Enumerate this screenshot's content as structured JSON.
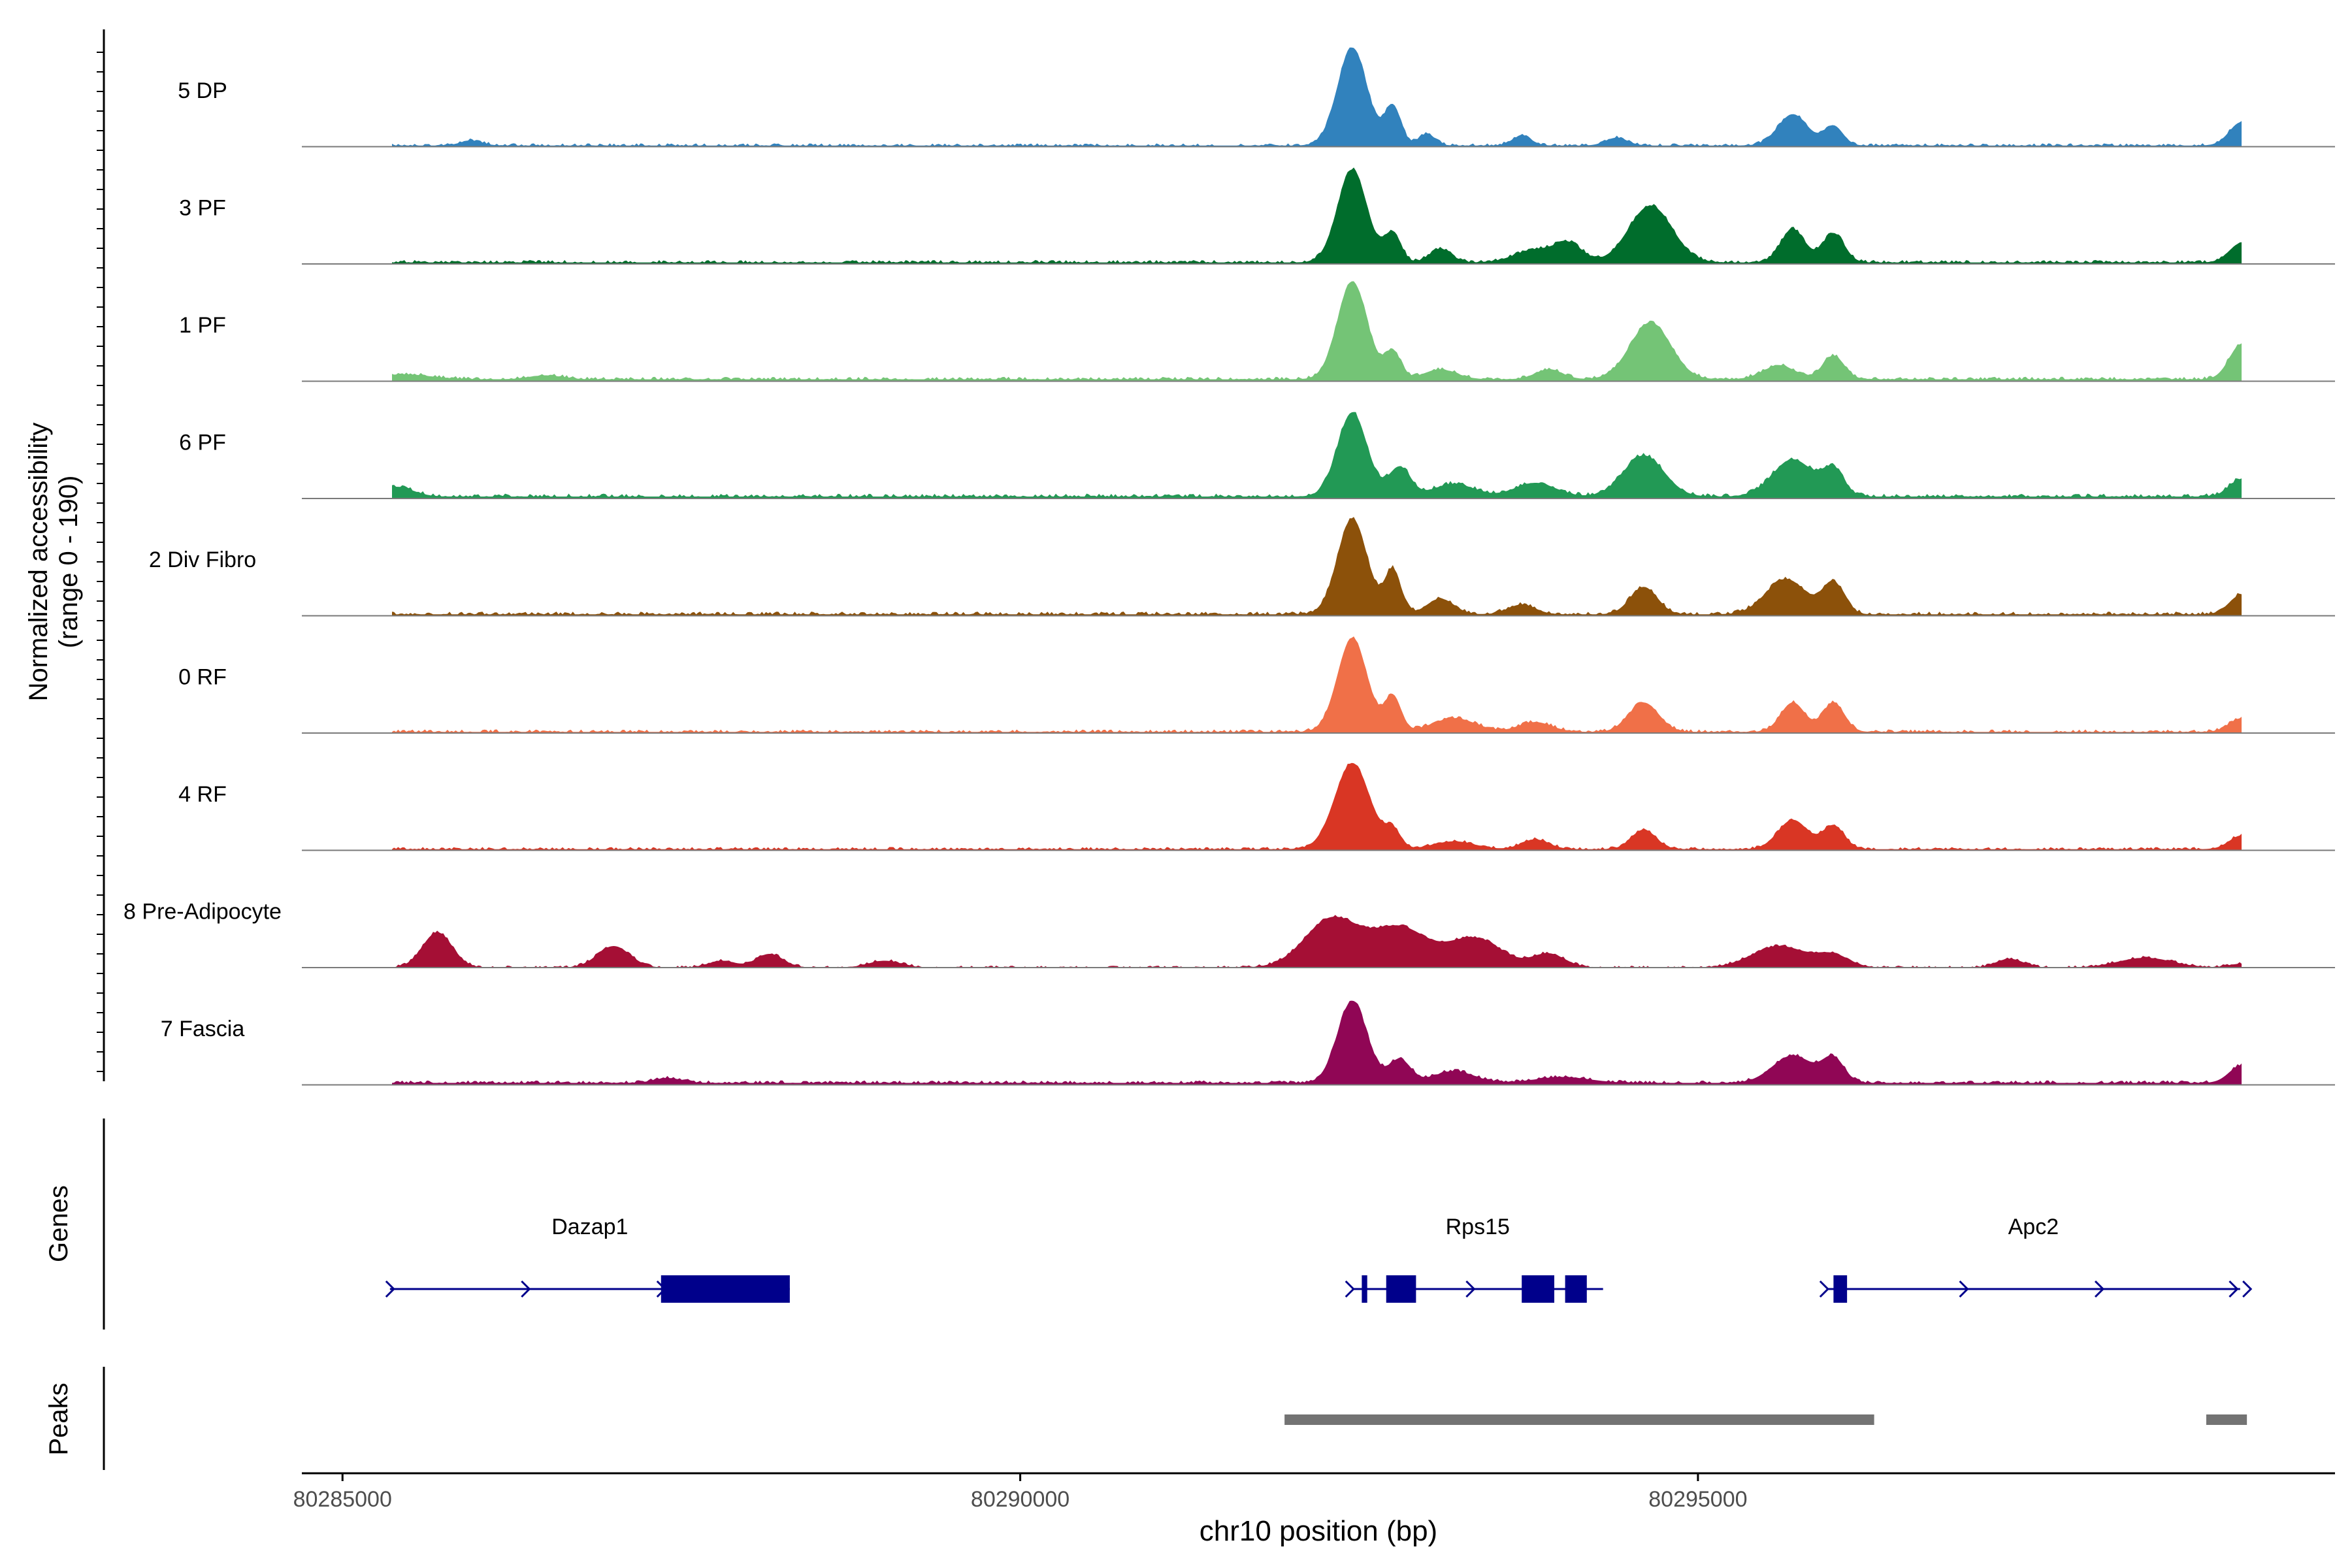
{
  "chart_data": {
    "type": "area",
    "subtype": "genome-coverage-track",
    "region": {
      "chromosome": "chr10",
      "start": 80284700,
      "end": 80299700
    },
    "xlabel": "chr10 position (bp)",
    "xticks": [
      {
        "value": 80285000,
        "label": "80285000"
      },
      {
        "value": 80290000,
        "label": "80290000"
      },
      {
        "value": 80295000,
        "label": "80295000"
      }
    ],
    "ylabel_line1": "Normalized accessibility",
    "ylabel_line2": "(range 0 - 190)",
    "y_range": [
      0,
      190
    ],
    "groups": [
      {
        "name": "5 DP",
        "color": "#3182BD",
        "baseline": 0.012,
        "noise": 0.022,
        "end_bump": 0.24,
        "peaks": [
          [
            80285950,
            0.05,
            80
          ],
          [
            80292450,
            1.0,
            110
          ],
          [
            80292750,
            0.4,
            60
          ],
          [
            80293000,
            0.12,
            60
          ],
          [
            80293700,
            0.1,
            70
          ],
          [
            80294400,
            0.08,
            80
          ],
          [
            80295700,
            0.32,
            110
          ],
          [
            80296000,
            0.2,
            70
          ]
        ]
      },
      {
        "name": "3 PF",
        "color": "#006D2C",
        "baseline": 0.015,
        "noise": 0.025,
        "end_bump": 0.2,
        "peaks": [
          [
            80292450,
            0.95,
            110
          ],
          [
            80292750,
            0.3,
            60
          ],
          [
            80293100,
            0.14,
            80
          ],
          [
            80293800,
            0.13,
            150
          ],
          [
            80294050,
            0.18,
            100
          ],
          [
            80294650,
            0.58,
            160
          ],
          [
            80295700,
            0.34,
            90
          ],
          [
            80296000,
            0.3,
            80
          ]
        ]
      },
      {
        "name": "1 PF",
        "color": "#74C476",
        "baseline": 0.02,
        "noise": 0.025,
        "end_bump": 0.36,
        "peaks": [
          [
            80285450,
            0.05,
            200
          ],
          [
            80286500,
            0.04,
            120
          ],
          [
            80292450,
            1.0,
            110
          ],
          [
            80292750,
            0.28,
            60
          ],
          [
            80293100,
            0.1,
            120
          ],
          [
            80293900,
            0.1,
            100
          ],
          [
            80294650,
            0.58,
            150
          ],
          [
            80295600,
            0.14,
            120
          ],
          [
            80296000,
            0.24,
            80
          ]
        ]
      },
      {
        "name": "6 PF",
        "color": "#229955",
        "baseline": 0.02,
        "noise": 0.03,
        "end_bump": 0.18,
        "peaks": [
          [
            80285400,
            0.1,
            120
          ],
          [
            80292450,
            0.86,
            110
          ],
          [
            80292800,
            0.3,
            80
          ],
          [
            80293200,
            0.13,
            150
          ],
          [
            80293800,
            0.14,
            150
          ],
          [
            80294600,
            0.42,
            150
          ],
          [
            80295700,
            0.38,
            150
          ],
          [
            80296000,
            0.26,
            80
          ]
        ]
      },
      {
        "name": "2 Div Fibro",
        "color": "#8C510A",
        "baseline": 0.015,
        "noise": 0.028,
        "end_bump": 0.2,
        "peaks": [
          [
            80292450,
            0.98,
            110
          ],
          [
            80292750,
            0.45,
            60
          ],
          [
            80293100,
            0.16,
            100
          ],
          [
            80293700,
            0.1,
            100
          ],
          [
            80294600,
            0.28,
            100
          ],
          [
            80295650,
            0.36,
            150
          ],
          [
            80296000,
            0.32,
            80
          ]
        ]
      },
      {
        "name": "0 RF",
        "color": "#F07048",
        "baseline": 0.012,
        "noise": 0.025,
        "end_bump": 0.14,
        "peaks": [
          [
            80292450,
            0.96,
            110
          ],
          [
            80292750,
            0.36,
            60
          ],
          [
            80293200,
            0.14,
            160
          ],
          [
            80293800,
            0.1,
            120
          ],
          [
            80294600,
            0.3,
            110
          ],
          [
            80295700,
            0.3,
            90
          ],
          [
            80296000,
            0.3,
            80
          ]
        ]
      },
      {
        "name": "4 RF",
        "color": "#D93624",
        "baseline": 0.012,
        "noise": 0.022,
        "end_bump": 0.14,
        "peaks": [
          [
            80292450,
            0.88,
            130
          ],
          [
            80292750,
            0.18,
            60
          ],
          [
            80293200,
            0.08,
            150
          ],
          [
            80293800,
            0.1,
            100
          ],
          [
            80294600,
            0.2,
            90
          ],
          [
            80295700,
            0.3,
            110
          ],
          [
            80296000,
            0.24,
            80
          ]
        ]
      },
      {
        "name": "8 Pre-Adipocyte",
        "color": "#A50F35",
        "baseline": 0.0,
        "noise": 0.02,
        "end_bump": 0.04,
        "peaks": [
          [
            80285700,
            0.36,
            110
          ],
          [
            80287000,
            0.22,
            120
          ],
          [
            80287800,
            0.07,
            100
          ],
          [
            80288150,
            0.14,
            100
          ],
          [
            80289000,
            0.07,
            120
          ],
          [
            80292300,
            0.5,
            200
          ],
          [
            80292800,
            0.4,
            200
          ],
          [
            80293350,
            0.3,
            200
          ],
          [
            80293900,
            0.14,
            120
          ],
          [
            80295600,
            0.22,
            200
          ],
          [
            80296000,
            0.12,
            120
          ],
          [
            80297300,
            0.09,
            100
          ],
          [
            80298300,
            0.1,
            200
          ]
        ]
      },
      {
        "name": "7 Fascia",
        "color": "#900655",
        "baseline": 0.02,
        "noise": 0.025,
        "end_bump": 0.18,
        "peaks": [
          [
            80287400,
            0.05,
            100
          ],
          [
            80292450,
            0.84,
            110
          ],
          [
            80292800,
            0.24,
            80
          ],
          [
            80293200,
            0.12,
            150
          ],
          [
            80294000,
            0.06,
            200
          ],
          [
            80295700,
            0.28,
            150
          ],
          [
            80296000,
            0.24,
            80
          ]
        ]
      }
    ],
    "genes_track_label": "Genes",
    "genes": [
      {
        "name": "Dazap1",
        "color": "#00008B",
        "strand": "+",
        "start": 80285350,
        "end": 80288300,
        "exons": [
          [
            80287350,
            80288300
          ]
        ],
        "arrows": [
          80285350,
          80286350,
          80287350
        ]
      },
      {
        "name": "Rps15",
        "color": "#00008B",
        "strand": "+",
        "start": 80292450,
        "end": 80294300,
        "exons": [
          [
            80292520,
            80292560
          ],
          [
            80292700,
            80292920
          ],
          [
            80293700,
            80293940
          ],
          [
            80294020,
            80294180
          ]
        ],
        "arrows": [
          80292430,
          80293320
        ]
      },
      {
        "name": "Apc2",
        "color": "#00008B",
        "strand": "+",
        "start": 80295950,
        "end": 80299000,
        "exons": [
          [
            80296000,
            80296100
          ]
        ],
        "arrows": [
          80295930,
          80296960,
          80297960,
          80298950,
          80299050
        ]
      }
    ],
    "peaks_track_label": "Peaks",
    "peaks_color": "#737373",
    "peak_regions": [
      [
        80291950,
        80296300
      ],
      [
        80298750,
        80299050
      ]
    ]
  }
}
